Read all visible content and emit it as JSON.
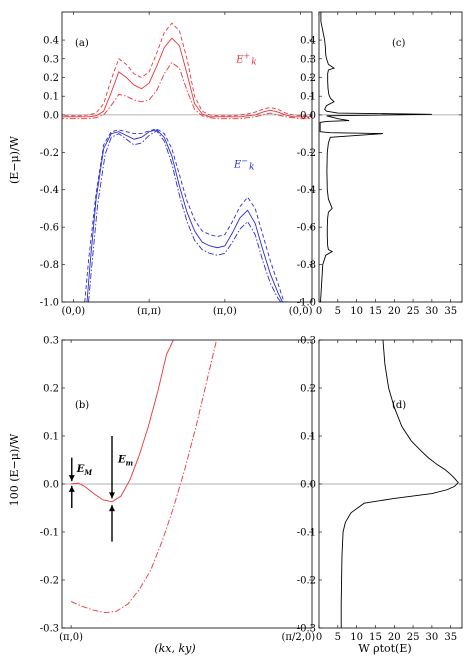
{
  "figure": {
    "ylabel_top": "(E−μ)/W",
    "ylabel_bottom": "100 (E−μ)/W",
    "xlabel_bottom_left": "(kx, ky)",
    "xlabel_bottom_right": "W ρtot(E)"
  },
  "chart_data": [
    {
      "panel": "a",
      "type": "line",
      "label": "(a)",
      "x_tick_labels": [
        "(0,0)",
        "(π,π)",
        "(π,0)",
        "(0,0)"
      ],
      "x_tick_positions": [
        0,
        1,
        2,
        3
      ],
      "ylim": [
        -1.0,
        0.55
      ],
      "y_ticks": [
        0.4,
        0.3,
        0.2,
        0.1,
        0.0,
        -0.2,
        -0.4,
        -0.6,
        -0.8,
        -1.0
      ],
      "y_tick_labels": [
        "0.4",
        "0.3",
        "0.2",
        "0.1",
        "0.0",
        "-0.2",
        "-0.4",
        "-0.6",
        "-0.8",
        "-1.0"
      ],
      "annotations": [
        {
          "text": "E+k",
          "color": "#e8353a",
          "at": [
            2.15,
            0.28
          ]
        },
        {
          "text": "E−k",
          "color": "#2b2bd6",
          "at": [
            2.12,
            -0.28
          ]
        }
      ],
      "series": [
        {
          "color": "#e8353a",
          "style": "solid",
          "x": [
            -0.2,
            0.0,
            0.1,
            0.2,
            0.3,
            0.4,
            0.5,
            0.6,
            0.7,
            0.8,
            0.9,
            1.0,
            1.1,
            1.2,
            1.3,
            1.4,
            1.5,
            1.6,
            1.7,
            1.8,
            1.9,
            2.0,
            2.1,
            2.2,
            2.3,
            2.4,
            2.5,
            2.6,
            2.7,
            2.8,
            2.9,
            3.0,
            3.2
          ],
          "y": [
            -0.01,
            -0.01,
            -0.01,
            -0.01,
            -0.005,
            0.02,
            0.12,
            0.23,
            0.2,
            0.16,
            0.14,
            0.17,
            0.26,
            0.36,
            0.41,
            0.37,
            0.22,
            0.06,
            0.005,
            -0.01,
            -0.01,
            -0.01,
            -0.01,
            -0.01,
            -0.005,
            0.0,
            0.015,
            0.025,
            0.015,
            0.0,
            -0.01,
            -0.01,
            -0.01
          ]
        },
        {
          "color": "#e8353a",
          "style": "dashed",
          "x": [
            -0.2,
            0.0,
            0.1,
            0.2,
            0.3,
            0.4,
            0.5,
            0.6,
            0.7,
            0.8,
            0.9,
            1.0,
            1.1,
            1.2,
            1.3,
            1.4,
            1.5,
            1.6,
            1.7,
            1.8,
            1.9,
            2.0,
            2.1,
            2.2,
            2.3,
            2.4,
            2.5,
            2.6,
            2.7,
            2.8,
            2.9,
            3.0,
            3.2
          ],
          "y": [
            -0.005,
            -0.005,
            -0.005,
            0.0,
            0.01,
            0.06,
            0.19,
            0.3,
            0.27,
            0.22,
            0.2,
            0.23,
            0.33,
            0.44,
            0.49,
            0.45,
            0.3,
            0.1,
            0.02,
            0.0,
            -0.005,
            -0.005,
            -0.005,
            0.0,
            0.005,
            0.015,
            0.03,
            0.04,
            0.03,
            0.01,
            0.0,
            -0.005,
            -0.005
          ]
        },
        {
          "color": "#e8353a",
          "style": "dashdot",
          "x": [
            -0.2,
            0.0,
            0.1,
            0.2,
            0.3,
            0.4,
            0.5,
            0.6,
            0.7,
            0.8,
            0.9,
            1.0,
            1.1,
            1.2,
            1.3,
            1.4,
            1.5,
            1.6,
            1.7,
            1.8,
            1.9,
            2.0,
            2.1,
            2.2,
            2.3,
            2.4,
            2.5,
            2.6,
            2.7,
            2.8,
            2.9,
            3.0,
            3.2
          ],
          "y": [
            -0.02,
            -0.02,
            -0.02,
            -0.02,
            -0.015,
            0.0,
            0.05,
            0.11,
            0.1,
            0.08,
            0.07,
            0.08,
            0.13,
            0.22,
            0.28,
            0.25,
            0.13,
            0.03,
            -0.005,
            -0.015,
            -0.02,
            -0.02,
            -0.02,
            -0.02,
            -0.015,
            -0.01,
            0.0,
            0.01,
            0.0,
            -0.01,
            -0.015,
            -0.02,
            -0.02
          ]
        },
        {
          "color": "#2b2bd6",
          "style": "solid",
          "x": [
            0.18,
            0.22,
            0.3,
            0.4,
            0.5,
            0.6,
            0.7,
            0.8,
            0.9,
            1.0,
            1.1,
            1.2,
            1.3,
            1.4,
            1.5,
            1.6,
            1.7,
            1.8,
            1.9,
            2.0,
            2.1,
            2.2,
            2.3,
            2.4,
            2.5,
            2.6,
            2.7,
            2.76,
            2.8,
            2.83
          ],
          "y": [
            -1.0,
            -0.8,
            -0.45,
            -0.18,
            -0.1,
            -0.09,
            -0.11,
            -0.13,
            -0.12,
            -0.09,
            -0.08,
            -0.12,
            -0.22,
            -0.38,
            -0.52,
            -0.62,
            -0.68,
            -0.7,
            -0.71,
            -0.7,
            -0.63,
            -0.55,
            -0.51,
            -0.58,
            -0.72,
            -0.85,
            -0.95,
            -1.0,
            -1.0,
            -1.0
          ]
        },
        {
          "color": "#2b2bd6",
          "style": "dashed",
          "x": [
            0.15,
            0.2,
            0.3,
            0.4,
            0.5,
            0.6,
            0.7,
            0.8,
            0.9,
            1.0,
            1.1,
            1.2,
            1.3,
            1.4,
            1.5,
            1.6,
            1.7,
            1.8,
            1.9,
            2.0,
            2.1,
            2.2,
            2.3,
            2.4,
            2.5,
            2.6,
            2.7,
            2.78,
            2.85,
            2.88
          ],
          "y": [
            -1.0,
            -0.78,
            -0.42,
            -0.16,
            -0.09,
            -0.08,
            -0.09,
            -0.1,
            -0.1,
            -0.085,
            -0.075,
            -0.1,
            -0.18,
            -0.32,
            -0.46,
            -0.56,
            -0.62,
            -0.64,
            -0.65,
            -0.64,
            -0.57,
            -0.49,
            -0.44,
            -0.5,
            -0.64,
            -0.78,
            -0.9,
            -1.0,
            -1.0,
            -1.0
          ]
        },
        {
          "color": "#2b2bd6",
          "style": "dashdot",
          "x": [
            0.2,
            0.24,
            0.32,
            0.42,
            0.5,
            0.6,
            0.7,
            0.8,
            0.9,
            1.0,
            1.1,
            1.2,
            1.3,
            1.4,
            1.5,
            1.6,
            1.7,
            1.8,
            1.9,
            2.0,
            2.1,
            2.2,
            2.3,
            2.4,
            2.5,
            2.6,
            2.7,
            2.74,
            2.78
          ],
          "y": [
            -1.0,
            -0.82,
            -0.48,
            -0.21,
            -0.12,
            -0.1,
            -0.13,
            -0.16,
            -0.15,
            -0.11,
            -0.085,
            -0.14,
            -0.26,
            -0.43,
            -0.57,
            -0.67,
            -0.72,
            -0.74,
            -0.75,
            -0.74,
            -0.68,
            -0.61,
            -0.57,
            -0.64,
            -0.78,
            -0.9,
            -0.98,
            -1.0,
            -1.0
          ]
        }
      ]
    },
    {
      "panel": "c",
      "type": "line",
      "label": "(c)",
      "xlim": [
        0,
        38
      ],
      "x_ticks": [
        0,
        5,
        10,
        15,
        20,
        25,
        30,
        35
      ],
      "x_tick_labels": [
        "0",
        "5",
        "10",
        "15",
        "20",
        "25",
        "30",
        "35"
      ],
      "ylim": [
        -1.0,
        0.55
      ],
      "y_ticks": [
        0.4,
        0.3,
        0.2,
        0.1,
        0.0,
        -0.2,
        -0.4,
        -0.6,
        -0.8,
        -1.0
      ],
      "y_tick_labels": [
        "0.4",
        "0.3",
        "0.2",
        "0.1",
        "0.0",
        "-0.2",
        "-0.4",
        "-0.6",
        "-0.8",
        "-1.0"
      ],
      "series": [
        {
          "color": "#000000",
          "style": "solid",
          "x": [
            0.5,
            0.5,
            1.0,
            1.3,
            1.5,
            1.7,
            1.8,
            2.0,
            2.5,
            4.0,
            2.5,
            2.3,
            2.3,
            2.4,
            2.6,
            3.0,
            4.0,
            2.0,
            1.5,
            2.0,
            5.0,
            30.0,
            2.0,
            5.0,
            8.0,
            2.0,
            0.3,
            0.3,
            3.0,
            17.0,
            3.0,
            2.5,
            2.2,
            2.1,
            2.2,
            2.5,
            3.5,
            2.5,
            2.3,
            2.2,
            2.2,
            2.3,
            2.5,
            3.5,
            1.8,
            1.0,
            0.7,
            0.4
          ],
          "y": [
            0.55,
            0.5,
            0.45,
            0.42,
            0.4,
            0.36,
            0.32,
            0.3,
            0.27,
            0.25,
            0.24,
            0.22,
            0.18,
            0.14,
            0.11,
            0.09,
            0.07,
            0.05,
            0.03,
            0.02,
            0.01,
            0.003,
            -0.005,
            -0.02,
            -0.03,
            -0.035,
            -0.04,
            -0.09,
            -0.095,
            -0.1,
            -0.12,
            -0.15,
            -0.2,
            -0.3,
            -0.4,
            -0.45,
            -0.5,
            -0.52,
            -0.55,
            -0.6,
            -0.65,
            -0.7,
            -0.72,
            -0.73,
            -0.75,
            -0.8,
            -0.9,
            -1.0
          ]
        }
      ]
    },
    {
      "panel": "b",
      "type": "line",
      "label": "(b)",
      "x_tick_labels": [
        "(π,0)",
        "(π/2,0)"
      ],
      "x_tick_positions": [
        0,
        1
      ],
      "ylim": [
        -0.3,
        0.3
      ],
      "y_ticks": [
        0.3,
        0.2,
        0.1,
        0.0,
        -0.1,
        -0.2,
        -0.3
      ],
      "y_tick_labels": [
        "0.3",
        "0.2",
        "0.1",
        "0.0",
        "-0.1",
        "-0.2",
        "-0.3"
      ],
      "annotations": [
        {
          "text": "EM",
          "color": "#000000"
        },
        {
          "text": "Em",
          "color": "#000000"
        }
      ],
      "series": [
        {
          "color": "#e8353a",
          "style": "solid",
          "x": [
            0.0,
            0.03,
            0.06,
            0.1,
            0.14,
            0.18,
            0.22,
            0.26,
            0.3,
            0.34,
            0.38,
            0.42,
            0.45
          ],
          "y": [
            0.0,
            0.002,
            -0.005,
            -0.02,
            -0.033,
            -0.037,
            -0.025,
            0.01,
            0.06,
            0.12,
            0.19,
            0.27,
            0.3
          ]
        },
        {
          "color": "#e8353a",
          "style": "dashdot",
          "x": [
            0.0,
            0.05,
            0.1,
            0.15,
            0.2,
            0.25,
            0.3,
            0.35,
            0.4,
            0.45,
            0.5,
            0.55,
            0.6,
            0.64
          ],
          "y": [
            -0.245,
            -0.255,
            -0.263,
            -0.268,
            -0.265,
            -0.25,
            -0.22,
            -0.18,
            -0.12,
            -0.05,
            0.03,
            0.12,
            0.22,
            0.3
          ]
        }
      ]
    },
    {
      "panel": "d",
      "type": "line",
      "label": "(d)",
      "xlim": [
        0,
        38
      ],
      "x_ticks": [
        0,
        5,
        10,
        15,
        20,
        25,
        30,
        35
      ],
      "x_tick_labels": [
        "0",
        "5",
        "10",
        "15",
        "20",
        "25",
        "30",
        "35"
      ],
      "ylim": [
        -0.3,
        0.3
      ],
      "y_ticks": [
        0.3,
        0.2,
        0.1,
        0.0,
        -0.1,
        -0.2,
        -0.3
      ],
      "y_tick_labels": [
        "0.3",
        "0.2",
        "0.1",
        "0.0",
        "-0.1",
        "-0.2",
        "-0.3"
      ],
      "series": [
        {
          "color": "#000000",
          "style": "solid",
          "x": [
            17.0,
            17.5,
            18.5,
            20.0,
            22.0,
            24.5,
            27.0,
            29.0,
            31.5,
            33.5,
            35.0,
            36.0,
            37.0,
            36.0,
            34.0,
            30.0,
            20.0,
            12.0,
            8.5,
            7.0,
            6.4,
            6.1,
            6.0,
            5.9,
            5.9
          ],
          "y": [
            0.3,
            0.25,
            0.2,
            0.16,
            0.12,
            0.09,
            0.07,
            0.055,
            0.04,
            0.03,
            0.02,
            0.012,
            0.003,
            -0.005,
            -0.012,
            -0.02,
            -0.03,
            -0.04,
            -0.06,
            -0.08,
            -0.1,
            -0.15,
            -0.2,
            -0.25,
            -0.3
          ]
        }
      ]
    }
  ]
}
